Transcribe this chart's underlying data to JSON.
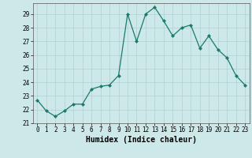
{
  "x": [
    0,
    1,
    2,
    3,
    4,
    5,
    6,
    7,
    8,
    9,
    10,
    11,
    12,
    13,
    14,
    15,
    16,
    17,
    18,
    19,
    20,
    21,
    22,
    23
  ],
  "y": [
    22.7,
    21.9,
    21.5,
    21.9,
    22.4,
    22.4,
    23.5,
    23.7,
    23.8,
    24.5,
    29.0,
    27.0,
    29.0,
    29.5,
    28.5,
    27.4,
    28.0,
    28.2,
    26.5,
    27.4,
    26.4,
    25.8,
    24.5,
    23.8
  ],
  "line_color": "#1a7a6e",
  "marker": "D",
  "marker_size": 2,
  "bg_color": "#cde8e8",
  "grid_color": "#b0d0d0",
  "xlabel": "Humidex (Indice chaleur)",
  "ylabel": "",
  "xlim": [
    -0.5,
    23.5
  ],
  "ylim": [
    21.0,
    29.8
  ],
  "yticks": [
    21,
    22,
    23,
    24,
    25,
    26,
    27,
    28,
    29
  ],
  "xticks": [
    0,
    1,
    2,
    3,
    4,
    5,
    6,
    7,
    8,
    9,
    10,
    11,
    12,
    13,
    14,
    15,
    16,
    17,
    18,
    19,
    20,
    21,
    22,
    23
  ],
  "label_fontsize": 7,
  "tick_fontsize": 5.5
}
